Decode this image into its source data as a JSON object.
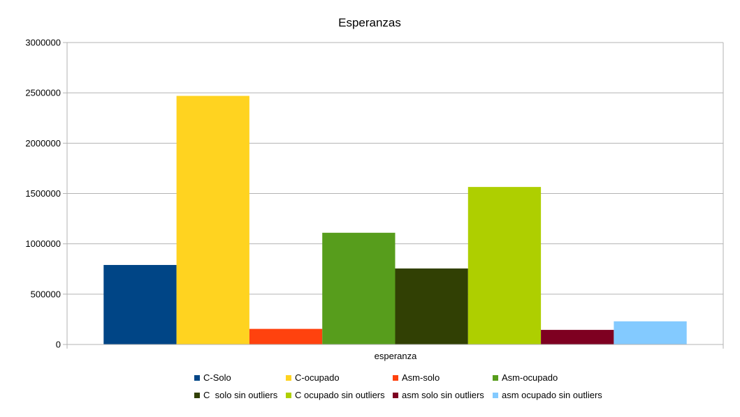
{
  "chart_data": {
    "type": "bar",
    "title": "Esperanzas",
    "xlabel": "",
    "ylabel": "",
    "categories": [
      "esperanza"
    ],
    "ylim": [
      0,
      3000000
    ],
    "yticks": [
      0,
      500000,
      1000000,
      1500000,
      2000000,
      2500000,
      3000000
    ],
    "ytick_labels": [
      "0",
      "500000",
      "1000000",
      "1500000",
      "2000000",
      "2500000",
      "3000000"
    ],
    "grid": true,
    "legend_position": "bottom",
    "series": [
      {
        "name": "C-Solo",
        "color": "#004586",
        "values": [
          790000
        ]
      },
      {
        "name": "C-ocupado",
        "color": "#ffd320",
        "values": [
          2470000
        ]
      },
      {
        "name": "Asm-solo",
        "color": "#ff420e",
        "values": [
          155000
        ]
      },
      {
        "name": "Asm-ocupado",
        "color": "#579d1c",
        "values": [
          1110000
        ]
      },
      {
        "name": "C  solo sin outliers",
        "color": "#314004",
        "values": [
          755000
        ]
      },
      {
        "name": "C ocupado sin outliers",
        "color": "#aecf00",
        "values": [
          1565000
        ]
      },
      {
        "name": "asm solo sin outliers",
        "color": "#7e0021",
        "values": [
          145000
        ]
      },
      {
        "name": "asm ocupado sin outliers",
        "color": "#83caff",
        "values": [
          230000
        ]
      }
    ]
  }
}
